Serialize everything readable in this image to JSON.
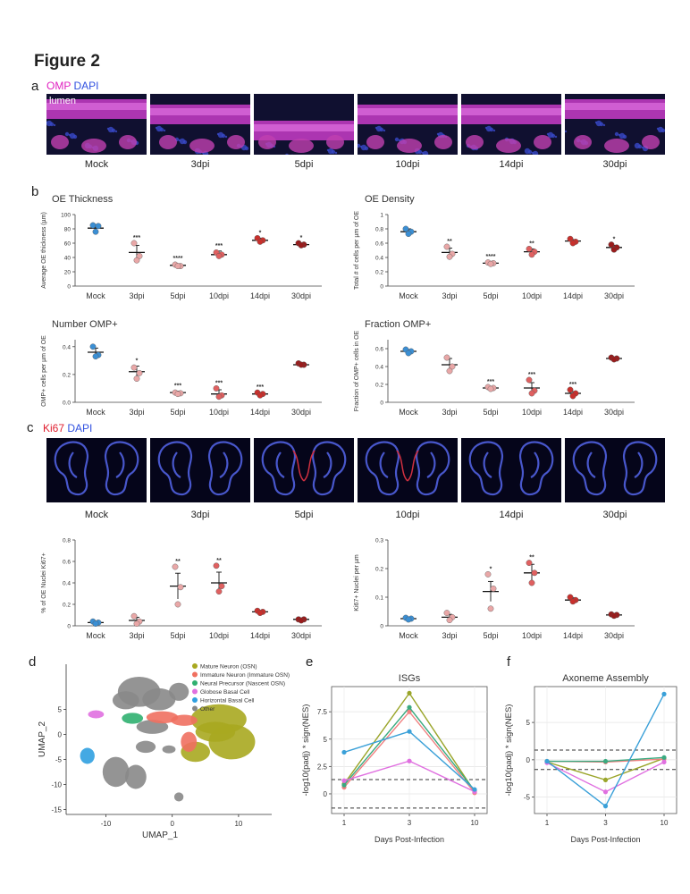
{
  "figure_title": "Figure 2",
  "panel_letters": {
    "a": "a",
    "b": "b",
    "c": "c",
    "d": "d",
    "e": "e",
    "f": "f"
  },
  "panel_a": {
    "stain_omp": "OMP",
    "stain_dapi": "DAPI",
    "lumen_label": "lumen",
    "captions": [
      "Mock",
      "3dpi",
      "5dpi",
      "10dpi",
      "14dpi",
      "30dpi"
    ]
  },
  "panel_c_images": {
    "stain_ki67": "Ki67",
    "stain_dapi": "DAPI",
    "captions": [
      "Mock",
      "3dpi",
      "5dpi",
      "10dpi",
      "14dpi",
      "30dpi"
    ]
  },
  "colors": {
    "mock": "#3b8fd4",
    "light": "#e9a7a7",
    "mid": "#e06060",
    "dark": "#c9302c",
    "darkest": "#9a1c1c"
  },
  "chart_data": [
    {
      "id": "b1",
      "type": "scatter",
      "title": "OE Thickness",
      "ylabel": "Average OE thickness (µm)",
      "categories": [
        "Mock",
        "3dpi",
        "5dpi",
        "10dpi",
        "14dpi",
        "30dpi"
      ],
      "ylim": [
        0,
        100
      ],
      "yticks": [
        0,
        20,
        40,
        60,
        80,
        100
      ],
      "means": [
        81,
        47,
        29,
        44,
        64,
        58
      ],
      "sems": [
        5,
        10,
        2,
        5,
        3,
        2
      ],
      "points": [
        [
          85,
          84,
          76
        ],
        [
          60,
          42,
          36
        ],
        [
          30,
          28,
          28
        ],
        [
          47,
          44,
          42
        ],
        [
          67,
          64,
          62
        ],
        [
          60,
          58,
          57
        ]
      ],
      "sig": [
        "",
        "***",
        "****",
        "***",
        "*",
        "*"
      ]
    },
    {
      "id": "b2",
      "type": "scatter",
      "title": "OE Density",
      "ylabel": "Total # of cells per µm of OE",
      "categories": [
        "Mock",
        "3dpi",
        "5dpi",
        "10dpi",
        "14dpi",
        "30dpi"
      ],
      "ylim": [
        0,
        1.0
      ],
      "yticks": [
        0.0,
        0.2,
        0.4,
        0.6,
        0.8,
        1.0
      ],
      "means": [
        0.76,
        0.47,
        0.32,
        0.48,
        0.63,
        0.54
      ],
      "sems": [
        0.04,
        0.06,
        0.02,
        0.04,
        0.02,
        0.03
      ],
      "points": [
        [
          0.8,
          0.76,
          0.73
        ],
        [
          0.55,
          0.45,
          0.41
        ],
        [
          0.33,
          0.32,
          0.31
        ],
        [
          0.52,
          0.48,
          0.44
        ],
        [
          0.66,
          0.62,
          0.6
        ],
        [
          0.58,
          0.54,
          0.51
        ]
      ],
      "sig": [
        "",
        "**",
        "****",
        "**",
        "",
        "*"
      ]
    },
    {
      "id": "b3",
      "type": "scatter",
      "title": "Number OMP+",
      "ylabel": "OMP+ cells per µm of OE",
      "categories": [
        "Mock",
        "3dpi",
        "5dpi",
        "10dpi",
        "14dpi",
        "30dpi"
      ],
      "ylim": [
        0,
        0.45
      ],
      "yticks": [
        0.0,
        0.2,
        0.4
      ],
      "ytick_labels": [
        "0.0",
        "0.2",
        "0.4"
      ],
      "means": [
        0.36,
        0.22,
        0.07,
        0.06,
        0.06,
        0.27
      ],
      "sems": [
        0.03,
        0.04,
        0.01,
        0.03,
        0.01,
        0.01
      ],
      "points": [
        [
          0.4,
          0.34,
          0.33
        ],
        [
          0.25,
          0.21,
          0.17
        ],
        [
          0.07,
          0.065,
          0.06
        ],
        [
          0.1,
          0.05,
          0.04
        ],
        [
          0.07,
          0.06,
          0.05
        ],
        [
          0.28,
          0.27,
          0.27
        ]
      ],
      "sig": [
        "",
        "*",
        "***",
        "***",
        "***",
        ""
      ]
    },
    {
      "id": "b4",
      "type": "scatter",
      "title": "Fraction OMP+",
      "ylabel": "Fraction of OMP+ cells in OE",
      "categories": [
        "Mock",
        "3dpi",
        "5dpi",
        "10dpi",
        "14dpi",
        "30dpi"
      ],
      "ylim": [
        0,
        0.7
      ],
      "yticks": [
        0.0,
        0.2,
        0.4,
        0.6
      ],
      "means": [
        0.57,
        0.42,
        0.16,
        0.16,
        0.1,
        0.49
      ],
      "sems": [
        0.02,
        0.07,
        0.01,
        0.06,
        0.02,
        0.01
      ],
      "points": [
        [
          0.59,
          0.57,
          0.55
        ],
        [
          0.5,
          0.4,
          0.35
        ],
        [
          0.17,
          0.16,
          0.15
        ],
        [
          0.25,
          0.13,
          0.1
        ],
        [
          0.14,
          0.1,
          0.07
        ],
        [
          0.5,
          0.49,
          0.48
        ]
      ],
      "sig": [
        "",
        "",
        "***",
        "***",
        "***",
        ""
      ]
    },
    {
      "id": "c1",
      "type": "scatter",
      "title": "",
      "ylabel": "% of OE Nuclei Ki67+",
      "categories": [
        "Mock",
        "3dpi",
        "5dpi",
        "10dpi",
        "14dpi",
        "30dpi"
      ],
      "ylim": [
        0,
        0.8
      ],
      "yticks": [
        0.0,
        0.2,
        0.4,
        0.6,
        0.8
      ],
      "means": [
        0.03,
        0.05,
        0.37,
        0.4,
        0.13,
        0.06
      ],
      "sems": [
        0.01,
        0.03,
        0.12,
        0.1,
        0.01,
        0.005
      ],
      "points": [
        [
          0.04,
          0.03,
          0.02
        ],
        [
          0.09,
          0.04,
          0.02
        ],
        [
          0.55,
          0.36,
          0.2
        ],
        [
          0.56,
          0.37,
          0.32
        ],
        [
          0.14,
          0.13,
          0.12
        ],
        [
          0.06,
          0.06,
          0.05
        ]
      ],
      "sig": [
        "",
        "",
        "**",
        "**",
        "",
        ""
      ]
    },
    {
      "id": "c2",
      "type": "scatter",
      "title": "",
      "ylabel": "Ki67+ Nuclei per µm",
      "categories": [
        "Mock",
        "3dpi",
        "5dpi",
        "10dpi",
        "14dpi",
        "30dpi"
      ],
      "ylim": [
        0,
        0.3
      ],
      "yticks": [
        0.0,
        0.1,
        0.2,
        0.3
      ],
      "means": [
        0.025,
        0.03,
        0.12,
        0.185,
        0.09,
        0.038
      ],
      "sems": [
        0.003,
        0.01,
        0.035,
        0.03,
        0.008,
        0.003
      ],
      "points": [
        [
          0.028,
          0.025,
          0.022
        ],
        [
          0.045,
          0.03,
          0.02
        ],
        [
          0.18,
          0.13,
          0.06
        ],
        [
          0.22,
          0.185,
          0.15
        ],
        [
          0.1,
          0.09,
          0.085
        ],
        [
          0.04,
          0.038,
          0.035
        ]
      ],
      "sig": [
        "",
        "",
        "*",
        "**",
        "",
        ""
      ]
    },
    {
      "id": "e",
      "type": "line",
      "title": "ISGs",
      "xlabel": "Days Post-Infection",
      "ylabel": "-log10(padj) * sign(NES)",
      "x": [
        1,
        3,
        10
      ],
      "ylim": [
        -1.8,
        9.8
      ],
      "yticks": [
        0.0,
        2.5,
        5.0,
        7.5
      ],
      "hlines": [
        1.3,
        -1.3
      ],
      "series": [
        {
          "color": "#9aa52a",
          "values": [
            0.9,
            9.2,
            0.2
          ]
        },
        {
          "color": "#f08080",
          "values": [
            0.6,
            7.5,
            0.1
          ]
        },
        {
          "color": "#3aaa80",
          "values": [
            0.8,
            7.9,
            0.3
          ]
        },
        {
          "color": "#e070e0",
          "values": [
            1.2,
            3.0,
            0.2
          ]
        },
        {
          "color": "#3aa0d8",
          "values": [
            3.8,
            5.7,
            0.4
          ]
        }
      ]
    },
    {
      "id": "f",
      "type": "line",
      "title": "Axoneme Assembly",
      "xlabel": "Days Post-Infection",
      "ylabel": "-log10(padj) * sign(NES)",
      "x": [
        1,
        3,
        10
      ],
      "ylim": [
        -7.2,
        9.8
      ],
      "yticks": [
        -5,
        0,
        5
      ],
      "hlines": [
        1.3,
        -1.3
      ],
      "series": [
        {
          "color": "#9aa52a",
          "values": [
            -0.3,
            -2.7,
            0.2
          ]
        },
        {
          "color": "#f08080",
          "values": [
            -0.2,
            -0.3,
            0.1
          ]
        },
        {
          "color": "#3aaa80",
          "values": [
            -0.2,
            -0.2,
            0.3
          ]
        },
        {
          "color": "#e070e0",
          "values": [
            -0.4,
            -4.3,
            -0.3
          ]
        },
        {
          "color": "#3aa0d8",
          "values": [
            -0.2,
            -6.2,
            8.8
          ]
        }
      ]
    }
  ],
  "panel_d": {
    "xlabel": "UMAP_1",
    "ylabel": "UMAP_2",
    "xticks": [
      -10,
      0,
      10
    ],
    "yticks": [
      5,
      0,
      -5,
      -10,
      -15
    ],
    "legend": [
      {
        "label": "Mature Neuron (OSN)",
        "color": "#a8a820"
      },
      {
        "label": "Immature Neuron (Immature OSN)",
        "color": "#f07060"
      },
      {
        "label": "Neural Precursor (Nascent OSN)",
        "color": "#30b070"
      },
      {
        "label": "Globose Basal Cell",
        "color": "#e070e0"
      },
      {
        "label": "Horizontal Basal Cell",
        "color": "#30a0e0"
      },
      {
        "label": "Other",
        "color": "#888888"
      }
    ]
  }
}
